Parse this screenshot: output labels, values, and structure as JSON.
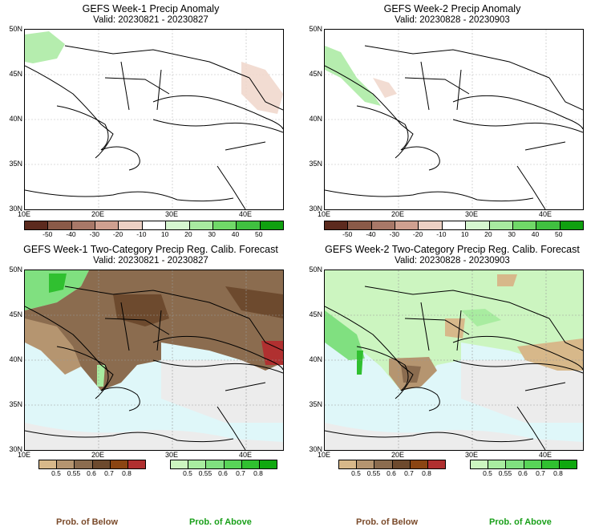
{
  "panels": [
    {
      "title": "GEFS Week-1 Precip Anomaly",
      "valid": "Valid: 20230821 - 20230827"
    },
    {
      "title": "GEFS Week-2 Precip Anomaly",
      "valid": "Valid: 20230828 - 20230903"
    },
    {
      "title": "GEFS Week-1 Two-Category Precip Reg. Calib. Forecast",
      "valid": "Valid: 20230821 - 20230827"
    },
    {
      "title": "GEFS Week-2 Two-Category Precip Reg. Calib. Forecast",
      "valid": "Valid: 20230828 - 20230903"
    }
  ],
  "lat_labels": [
    "50N",
    "45N",
    "40N",
    "35N",
    "30N"
  ],
  "lon_labels": [
    "10E",
    "20E",
    "30E",
    "40E"
  ],
  "anomaly_scale": {
    "labels": [
      "-50",
      "-40",
      "-30",
      "-20",
      "-10",
      "10",
      "20",
      "30",
      "40",
      "50"
    ],
    "colors": [
      "#5c2a1e",
      "#8a5a48",
      "#a87868",
      "#cfa090",
      "#ecd0c4",
      "#ffffff",
      "#d6f6d0",
      "#a8eaa0",
      "#70d868",
      "#40c040",
      "#10a010"
    ]
  },
  "below_scale": {
    "labels": [
      "0.5",
      "0.55",
      "0.6",
      "0.7",
      "0.8"
    ],
    "colors": [
      "#d7b88a",
      "#b59570",
      "#8b6c4f",
      "#6d4a2e",
      "#8b4513",
      "#b03030"
    ]
  },
  "above_scale": {
    "labels": [
      "0.5",
      "0.55",
      "0.6",
      "0.7",
      "0.8"
    ],
    "colors": [
      "#ccf5c0",
      "#a8eca0",
      "#80e080",
      "#58d458",
      "#30c030",
      "#10a810"
    ]
  },
  "legend": {
    "below": "Prob. of Below",
    "above": "Prob. of Above"
  },
  "colors": {
    "below_title": "#7a4a2a",
    "above_title": "#1aa01a",
    "sea": "#dff7f9",
    "no_data": "#ececec"
  }
}
